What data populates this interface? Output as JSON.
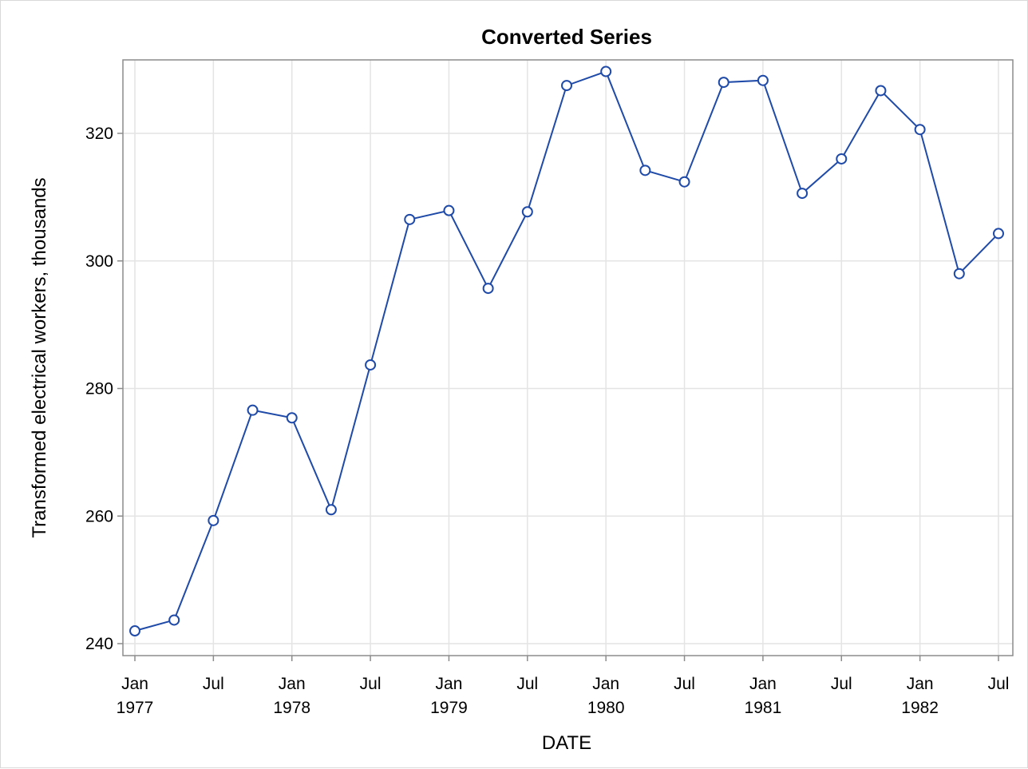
{
  "chart_data": {
    "type": "line",
    "title": "Converted Series",
    "xlabel": "DATE",
    "ylabel": "Transformed electrical workers, thousands",
    "ylim": [
      238,
      332
    ],
    "y_ticks": [
      240,
      260,
      280,
      300,
      320
    ],
    "x_ticks": [
      {
        "date": "1977-01",
        "line1": "Jan",
        "line2": "1977"
      },
      {
        "date": "1977-07",
        "line1": "Jul",
        "line2": ""
      },
      {
        "date": "1978-01",
        "line1": "Jan",
        "line2": "1978"
      },
      {
        "date": "1978-07",
        "line1": "Jul",
        "line2": ""
      },
      {
        "date": "1979-01",
        "line1": "Jan",
        "line2": "1979"
      },
      {
        "date": "1979-07",
        "line1": "Jul",
        "line2": ""
      },
      {
        "date": "1980-01",
        "line1": "Jan",
        "line2": "1980"
      },
      {
        "date": "1980-07",
        "line1": "Jul",
        "line2": ""
      },
      {
        "date": "1981-01",
        "line1": "Jan",
        "line2": "1981"
      },
      {
        "date": "1981-07",
        "line1": "Jul",
        "line2": ""
      },
      {
        "date": "1982-01",
        "line1": "Jan",
        "line2": "1982"
      },
      {
        "date": "1982-07",
        "line1": "Jul",
        "line2": ""
      }
    ],
    "grid": true,
    "series": [
      {
        "color": "#1f4aa8",
        "marker": "open-circle",
        "points": [
          {
            "x": "1977-01",
            "y": 242.0
          },
          {
            "x": "1977-04",
            "y": 243.7
          },
          {
            "x": "1977-07",
            "y": 259.3
          },
          {
            "x": "1977-10",
            "y": 276.6
          },
          {
            "x": "1978-01",
            "y": 275.4
          },
          {
            "x": "1978-04",
            "y": 261.0
          },
          {
            "x": "1978-07",
            "y": 283.7
          },
          {
            "x": "1978-10",
            "y": 306.5
          },
          {
            "x": "1979-01",
            "y": 307.9
          },
          {
            "x": "1979-04",
            "y": 295.7
          },
          {
            "x": "1979-07",
            "y": 307.7
          },
          {
            "x": "1979-10",
            "y": 327.5
          },
          {
            "x": "1980-01",
            "y": 329.7
          },
          {
            "x": "1980-04",
            "y": 314.2
          },
          {
            "x": "1980-07",
            "y": 312.4
          },
          {
            "x": "1980-10",
            "y": 328.0
          },
          {
            "x": "1981-01",
            "y": 328.3
          },
          {
            "x": "1981-04",
            "y": 310.6
          },
          {
            "x": "1981-07",
            "y": 316.0
          },
          {
            "x": "1981-10",
            "y": 326.7
          },
          {
            "x": "1982-01",
            "y": 320.6
          },
          {
            "x": "1982-04",
            "y": 298.0
          },
          {
            "x": "1982-07",
            "y": 304.3
          }
        ]
      }
    ]
  }
}
